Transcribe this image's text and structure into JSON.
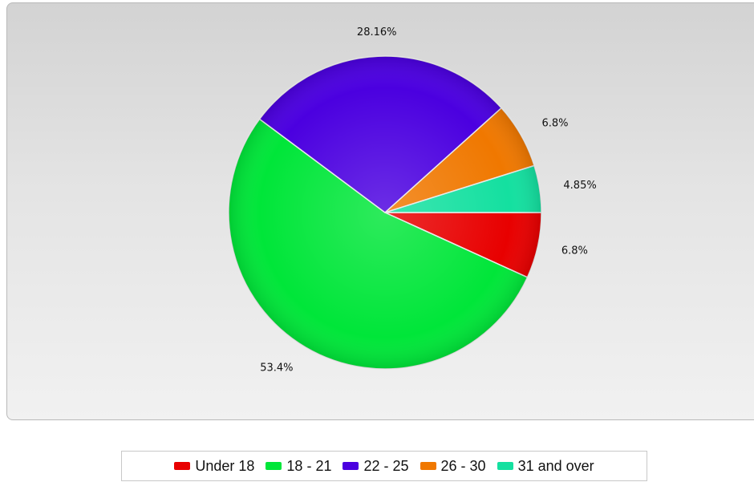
{
  "chart_data": {
    "type": "pie",
    "title": "",
    "legend_position": "bottom",
    "slices": [
      {
        "label": "Under 18",
        "value": 6.8,
        "display": "6.8%",
        "color": "#e80000"
      },
      {
        "label": "18 - 21",
        "value": 53.4,
        "display": "53.4%",
        "color": "#00e639"
      },
      {
        "label": "22 - 25",
        "value": 28.16,
        "display": "28.16%",
        "color": "#4b00e0"
      },
      {
        "label": "26 - 30",
        "value": 6.8,
        "display": "6.8%",
        "color": "#f07800"
      },
      {
        "label": "31 and over",
        "value": 4.85,
        "display": "4.85%",
        "color": "#14e0a0"
      }
    ]
  }
}
